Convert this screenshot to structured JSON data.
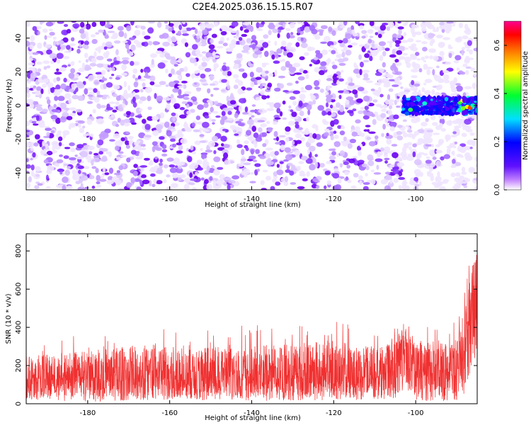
{
  "figure": {
    "title": "C2E4.2025.036.15.15.R07"
  },
  "chart_data": [
    {
      "type": "heatmap",
      "title": "C2E4.2025.036.15.15.R07",
      "xlabel": "Height of straight line (km)",
      "ylabel": "Frequency (Hz)",
      "xlim": [
        -195,
        -85
      ],
      "ylim": [
        -50,
        50
      ],
      "x_ticks": [
        -180,
        -160,
        -140,
        -120,
        -100
      ],
      "y_ticks": [
        -40,
        -20,
        0,
        20,
        40
      ],
      "background": "speckled low-amplitude noise (purple) across full range",
      "signal": {
        "x_range": [
          -103,
          -85
        ],
        "freq_center": 0,
        "freq_halfwidth": 5,
        "peak_amplitude": 0.65
      },
      "colorbar": {
        "label": "Normalized spectral amplitude",
        "range": [
          0,
          0.7
        ],
        "ticks": [
          0.0,
          0.2,
          0.4,
          0.6
        ],
        "tick_labels": [
          "0.0",
          "0.2",
          "0.4",
          "0.6"
        ],
        "colors": [
          "#ffffff",
          "#8a2be2",
          "#5500ff",
          "#0000ff",
          "#00ffff",
          "#00ff40",
          "#ffff00",
          "#ff8000",
          "#ff0000",
          "#ff00a0"
        ]
      }
    },
    {
      "type": "line",
      "xlabel": "Height of straight line (km)",
      "ylabel": "SNR (10 * v/v)",
      "xlim": [
        -195,
        -85
      ],
      "ylim": [
        0,
        890
      ],
      "x_ticks": [
        -180,
        -160,
        -140,
        -120,
        -100
      ],
      "y_ticks": [
        0,
        200,
        400,
        600,
        800
      ],
      "color": "#f03030",
      "series": [
        {
          "x": [
            -195,
            -180,
            -165,
            -150,
            -135,
            -120,
            -110,
            -105,
            -103,
            -100,
            -95,
            -90,
            -88,
            -86,
            -85
          ],
          "values": [
            130,
            135,
            140,
            138,
            140,
            142,
            148,
            170,
            320,
            190,
            160,
            175,
            320,
            560,
            640
          ],
          "envelope_max": [
            330,
            370,
            440,
            400,
            430,
            460,
            400,
            420,
            510,
            420,
            450,
            440,
            650,
            890,
            890
          ],
          "envelope_min": [
            20,
            10,
            20,
            20,
            15,
            20,
            20,
            30,
            60,
            20,
            10,
            20,
            40,
            200,
            250
          ]
        }
      ]
    }
  ]
}
